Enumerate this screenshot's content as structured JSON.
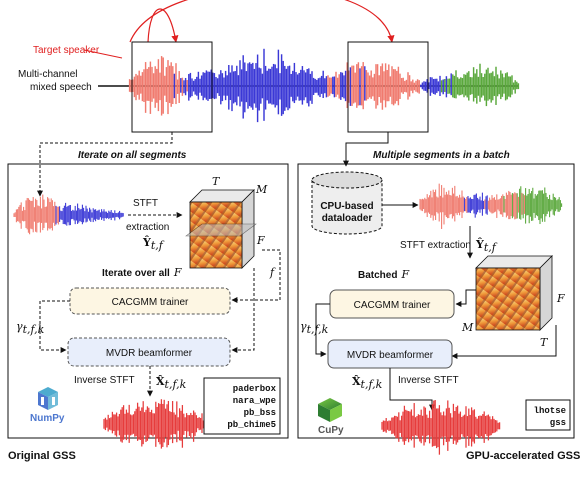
{
  "top": {
    "target_speaker_label": "Target speaker",
    "mixed_speech_label_line1": "Multi-channel",
    "mixed_speech_label_line2": "mixed speech"
  },
  "left_panel": {
    "header": "Iterate on all segments",
    "stft_label_line1": "STFT",
    "stft_label_line2": "extraction",
    "y_var": "Ŷ",
    "y_sub": "t,f",
    "cube_T": "T",
    "cube_M": "M",
    "cube_F": "F",
    "iterate_label": "Iterate over all",
    "iterate_var": "F",
    "f_var": "f",
    "cacgmm_label": "CACGMM trainer",
    "gamma_var": "γ",
    "gamma_sub": "t,f,k",
    "mvdr_label": "MVDR beamformer",
    "inverse_stft_label": "Inverse STFT",
    "x_var": "X̂",
    "x_sub": "t,f,k",
    "libs": [
      "paderbox",
      "nara_wpe",
      "pb_bss",
      "pb_chime5"
    ],
    "logo_text": "NumPy",
    "caption": "Original GSS"
  },
  "right_panel": {
    "header": "Multiple segments in a batch",
    "dataloader_line1": "CPU-based",
    "dataloader_line2": "dataloader",
    "stft_label": "STFT extraction",
    "y_var": "Ŷ",
    "y_sub": "t,f",
    "batched_label": "Batched",
    "batched_var": "F",
    "cube_F": "F",
    "cube_M": "M",
    "cube_T": "T",
    "cacgmm_label": "CACGMM trainer",
    "gamma_var": "γ",
    "gamma_sub": "t,f,k",
    "mvdr_label": "MVDR beamformer",
    "inverse_stft_label": "Inverse STFT",
    "x_var": "X̂",
    "x_sub": "t,f,k",
    "libs": [
      "lhotse",
      "gss"
    ],
    "logo_text": "CuPy",
    "caption": "GPU-accelerated GSS"
  },
  "colors": {
    "red": "#e63c3c",
    "salmon": "#f07a6e",
    "blue": "#3a38d6",
    "green": "#5aa83c",
    "cacgmm_fill": "#fdf6e3",
    "mvdr_fill": "#e8eefb"
  }
}
